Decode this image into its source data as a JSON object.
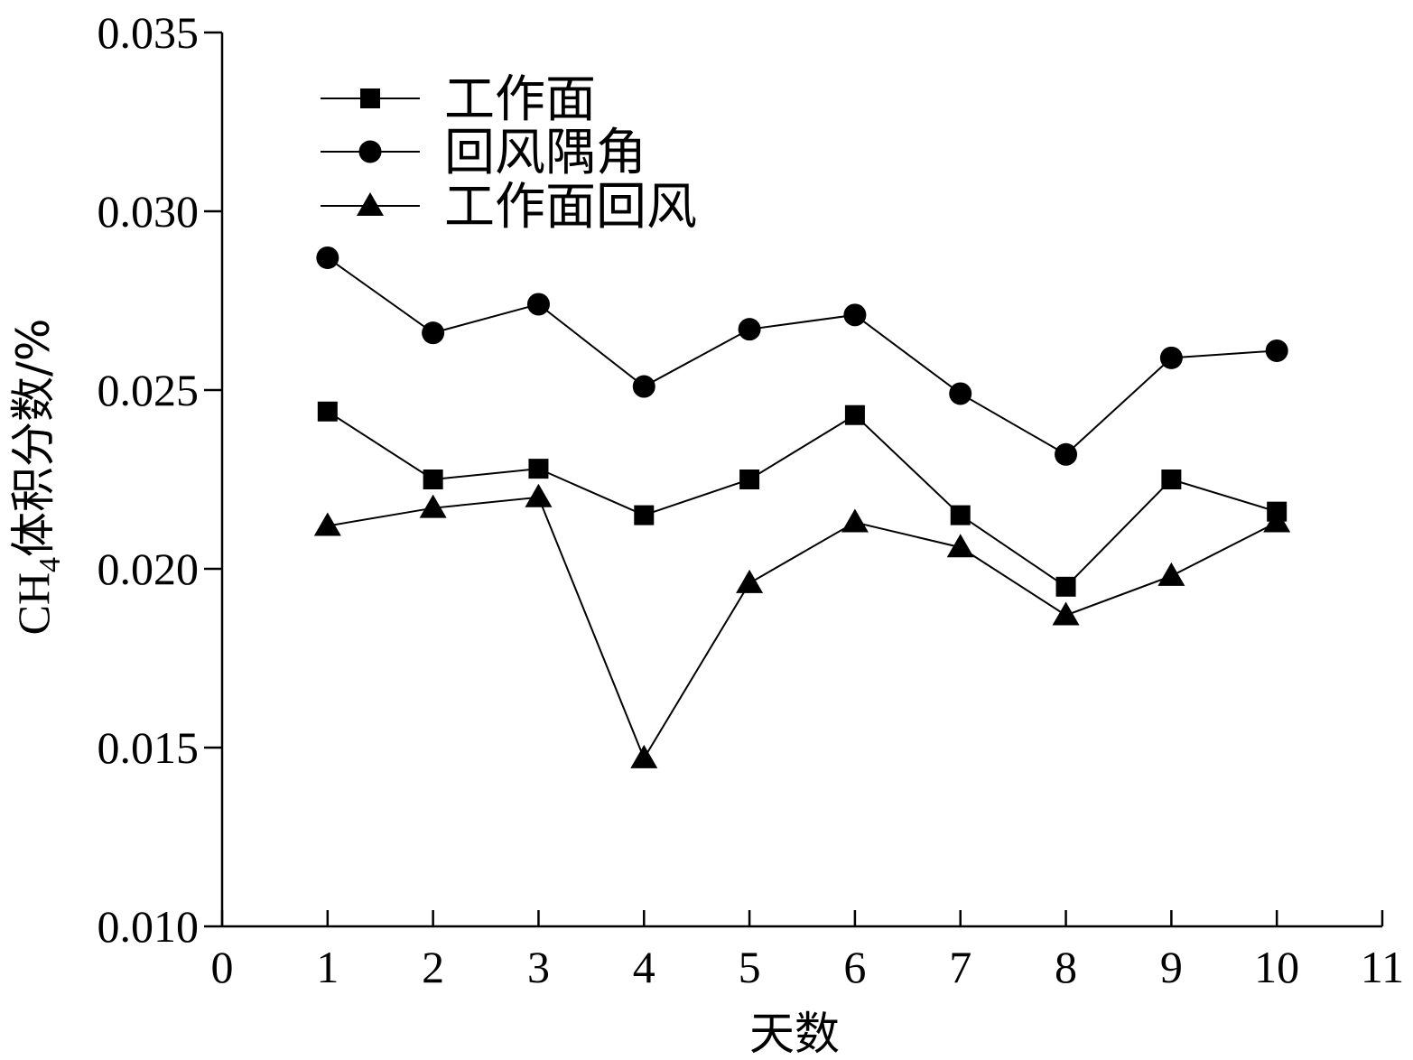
{
  "chart_data": {
    "type": "line",
    "xlabel": "天数",
    "ylabel_prefix": "CH",
    "ylabel_sub": "4",
    "ylabel_suffix": "体积分数/%",
    "xlim": [
      0,
      11
    ],
    "ylim": [
      0.01,
      0.035
    ],
    "xticks": [
      0,
      1,
      2,
      3,
      4,
      5,
      6,
      7,
      8,
      9,
      10,
      11
    ],
    "yticks": [
      "0.010",
      "0.015",
      "0.020",
      "0.025",
      "0.030",
      "0.035"
    ],
    "grid": false,
    "legend_position": "top-left",
    "x": [
      1,
      2,
      3,
      4,
      5,
      6,
      7,
      8,
      9,
      10
    ],
    "series": [
      {
        "name": "工作面",
        "marker": "square",
        "values": [
          0.0244,
          0.0225,
          0.0228,
          0.0215,
          0.0225,
          0.0243,
          0.0215,
          0.0195,
          0.0225,
          0.0216
        ]
      },
      {
        "name": "回风隅角",
        "marker": "circle",
        "values": [
          0.0287,
          0.0266,
          0.0274,
          0.0251,
          0.0267,
          0.0271,
          0.0249,
          0.0232,
          0.0259,
          0.0261
        ]
      },
      {
        "name": "工作面回风",
        "marker": "triangle",
        "values": [
          0.0212,
          0.0217,
          0.022,
          0.0147,
          0.0196,
          0.0213,
          0.0206,
          0.0187,
          0.0198,
          0.0213
        ]
      }
    ]
  }
}
